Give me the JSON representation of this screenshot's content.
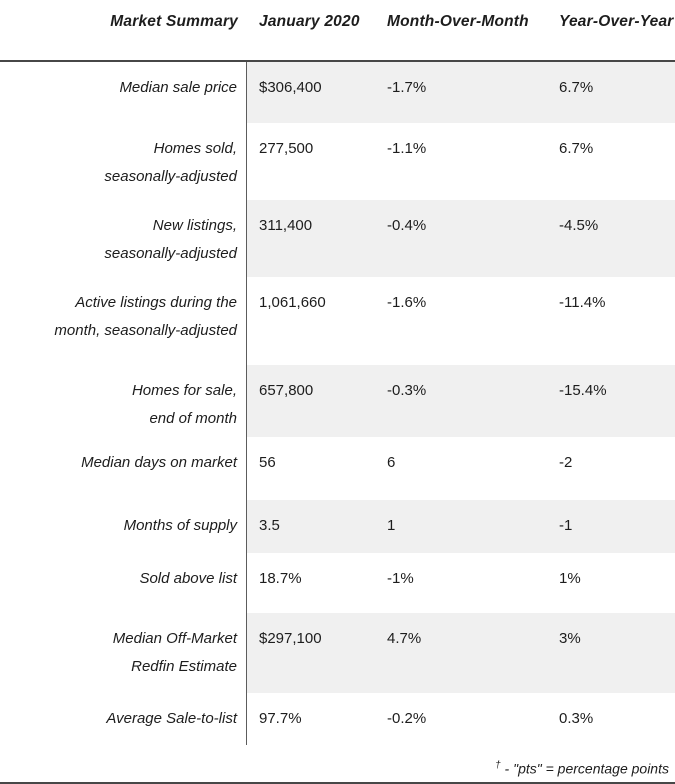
{
  "chart_data": {
    "type": "table",
    "title": "Market Summary",
    "columns": [
      "Market Summary",
      "January 2020",
      "Month-Over-Month",
      "Year-Over-Year"
    ],
    "rows": [
      [
        "Median sale price",
        "$306,400",
        "-1.7%",
        "6.7%"
      ],
      [
        "Homes sold, seasonally-adjusted",
        "277,500",
        "-1.1%",
        "6.7%"
      ],
      [
        "New listings, seasonally-adjusted",
        "311,400",
        "-0.4%",
        "-4.5%"
      ],
      [
        "Active listings during the month, seasonally-adjusted",
        "1,061,660",
        "-1.6%",
        "-11.4%"
      ],
      [
        "Homes for sale, end of month",
        "657,800",
        "-0.3%",
        "-15.4%"
      ],
      [
        "Median days on market",
        "56",
        "6",
        "-2"
      ],
      [
        "Months of supply",
        "3.5",
        "1",
        "-1"
      ],
      [
        "Sold above list",
        "18.7%",
        "-1%",
        "1%"
      ],
      [
        "Median Off-Market Redfin Estimate",
        "$297,100",
        "4.7%",
        "3%"
      ],
      [
        "Average Sale-to-list",
        "97.7%",
        "-0.2%",
        "0.3%"
      ]
    ],
    "footnote": "† - \"pts\" = percentage points",
    "layout_hints": {
      "striped_rows": "odd rows shaded on value side only",
      "stripe_color": "#f0f0f0",
      "grid": "header rule + single vertical divider"
    }
  },
  "table": {
    "columns": [
      "Market Summary",
      "January 2020",
      "Month-Over-Month",
      "Year-Over-Year"
    ],
    "rows": [
      {
        "label": "Median sale price",
        "jan2020": "$306,400",
        "mom": "-1.7%",
        "yoy": "6.7%"
      },
      {
        "label": "Homes sold,",
        "label2": "seasonally-adjusted",
        "jan2020": "277,500",
        "mom": "-1.1%",
        "yoy": "6.7%"
      },
      {
        "label": "New listings,",
        "label2": "seasonally-adjusted",
        "jan2020": "311,400",
        "mom": "-0.4%",
        "yoy": "-4.5%"
      },
      {
        "label": "Active listings during the",
        "label2": "month, seasonally-adjusted",
        "jan2020": "1,061,660",
        "mom": "-1.6%",
        "yoy": "-11.4%"
      },
      {
        "label": "Homes for sale,",
        "label2": "end of month",
        "jan2020": "657,800",
        "mom": "-0.3%",
        "yoy": "-15.4%"
      },
      {
        "label": "Median days on market",
        "jan2020": "56",
        "mom": "6",
        "yoy": "-2"
      },
      {
        "label": "Months of supply",
        "jan2020": "3.5",
        "mom": "1",
        "yoy": "-1"
      },
      {
        "label": "Sold above list",
        "jan2020": "18.7%",
        "mom": "-1%",
        "yoy": "1%"
      },
      {
        "label": "Median Off-Market",
        "label2": "Redfin Estimate",
        "jan2020": "$297,100",
        "mom": "4.7%",
        "yoy": "3%"
      },
      {
        "label": "Average Sale-to-list",
        "jan2020": "97.7%",
        "mom": "-0.2%",
        "yoy": "0.3%"
      }
    ]
  },
  "footnote": {
    "dagger": "†",
    "text": " - \"pts\" = percentage points"
  },
  "colors": {
    "stripe": "#f0f0f0",
    "header_rule": "#474747",
    "divider": "#5c5c5c",
    "text": "#1d1d1d",
    "background": "#ffffff"
  }
}
